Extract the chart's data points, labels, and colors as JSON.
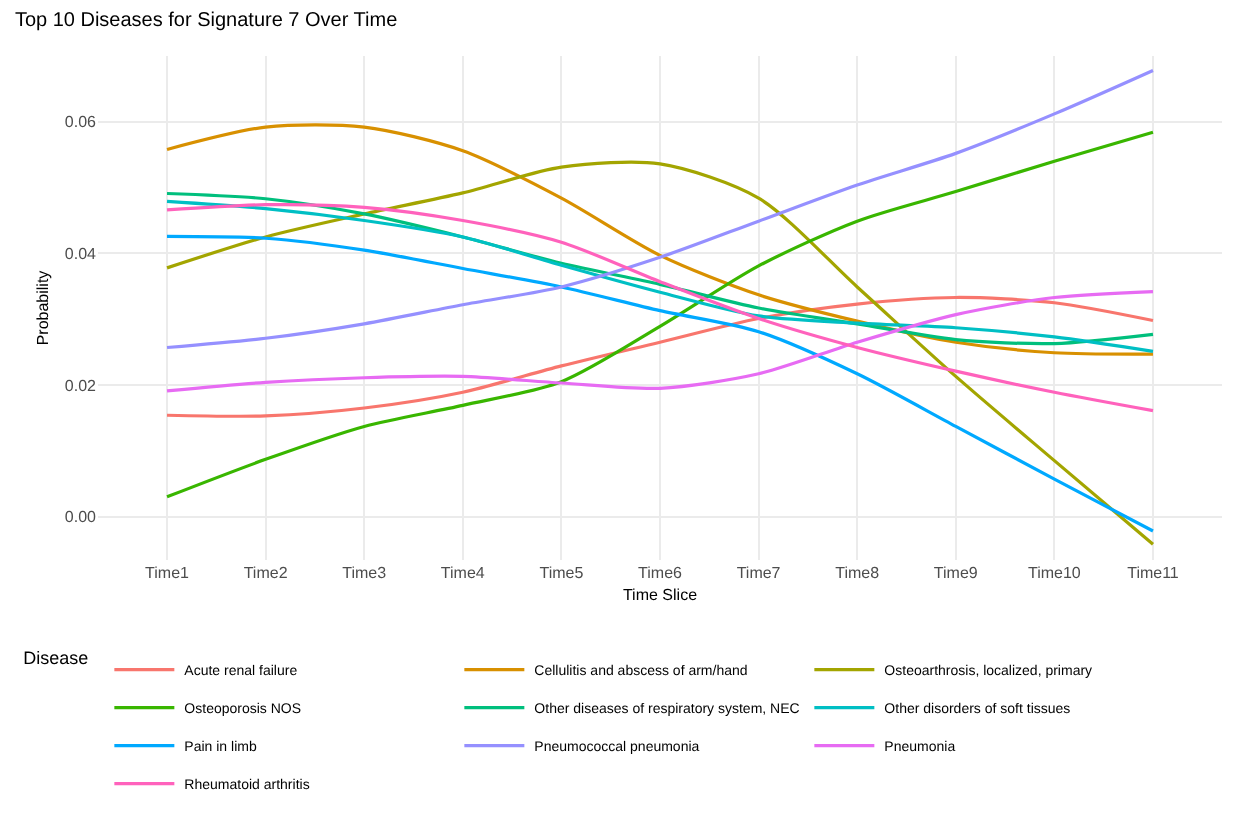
{
  "chart_data": {
    "type": "line",
    "title": "Top 10 Diseases for Signature 7 Over Time",
    "xlabel": "Time Slice",
    "ylabel": "Probability",
    "legend_title": "Disease",
    "categories": [
      "Time1",
      "Time2",
      "Time3",
      "Time4",
      "Time5",
      "Time6",
      "Time7",
      "Time8",
      "Time9",
      "Time10",
      "Time11"
    ],
    "ylim": [
      -0.0066,
      0.07
    ],
    "yticks": [
      {
        "value": 0,
        "label": "0.00"
      },
      0.02,
      0.04,
      0.06
    ],
    "grid": true,
    "legend": "bottom",
    "line_style": "solid",
    "marker": "none",
    "series": [
      {
        "name": "Acute renal failure",
        "color": "#f8766d",
        "values": [
          0.0154,
          0.0153,
          0.0165,
          0.0189,
          0.0229,
          0.0265,
          0.0301,
          0.0323,
          0.0333,
          0.0325,
          0.0298
        ]
      },
      {
        "name": "Cellulitis and abscess of arm/hand",
        "color": "#d89000",
        "values": [
          0.0558,
          0.0592,
          0.0592,
          0.0556,
          0.0484,
          0.0397,
          0.0337,
          0.0297,
          0.0265,
          0.0249,
          0.0247
        ]
      },
      {
        "name": "Osteoarthrosis, localized, primary",
        "color": "#a3a500",
        "values": [
          0.0378,
          0.0425,
          0.046,
          0.0492,
          0.0531,
          0.0536,
          0.0484,
          0.0349,
          0.0213,
          0.0085,
          -0.0042
        ]
      },
      {
        "name": "Osteoporosis NOS",
        "color": "#39b600",
        "values": [
          0.003,
          0.0087,
          0.0137,
          0.0169,
          0.0205,
          0.0289,
          0.0381,
          0.0449,
          0.0494,
          0.054,
          0.0584
        ]
      },
      {
        "name": "Other diseases of respiratory system, NEC",
        "color": "#00bf7d",
        "values": [
          0.0491,
          0.0483,
          0.046,
          0.0425,
          0.0385,
          0.0353,
          0.0317,
          0.0293,
          0.0269,
          0.0263,
          0.0277
        ]
      },
      {
        "name": "Other disorders of soft tissues",
        "color": "#00bfc4",
        "values": [
          0.0479,
          0.0468,
          0.045,
          0.0425,
          0.0382,
          0.0341,
          0.0305,
          0.0294,
          0.0287,
          0.0273,
          0.0251
        ]
      },
      {
        "name": "Pain in limb",
        "color": "#00a9ff",
        "values": [
          0.0426,
          0.0423,
          0.0405,
          0.0377,
          0.0349,
          0.0313,
          0.0281,
          0.0217,
          0.0137,
          0.0057,
          -0.0022
        ]
      },
      {
        "name": "Pneumococcal pneumonia",
        "color": "#9590ff",
        "values": [
          0.0257,
          0.0271,
          0.0293,
          0.0322,
          0.0349,
          0.0394,
          0.0449,
          0.0504,
          0.0552,
          0.0612,
          0.0678
        ]
      },
      {
        "name": "Pneumonia",
        "color": "#e76bf3",
        "values": [
          0.0191,
          0.0204,
          0.0211,
          0.0213,
          0.0203,
          0.0195,
          0.0217,
          0.0265,
          0.0307,
          0.0333,
          0.0342
        ]
      },
      {
        "name": "Rheumatoid arthritis",
        "color": "#ff62bc",
        "values": [
          0.0466,
          0.0474,
          0.047,
          0.045,
          0.0417,
          0.0357,
          0.0301,
          0.0257,
          0.0221,
          0.0189,
          0.0161
        ]
      }
    ]
  }
}
